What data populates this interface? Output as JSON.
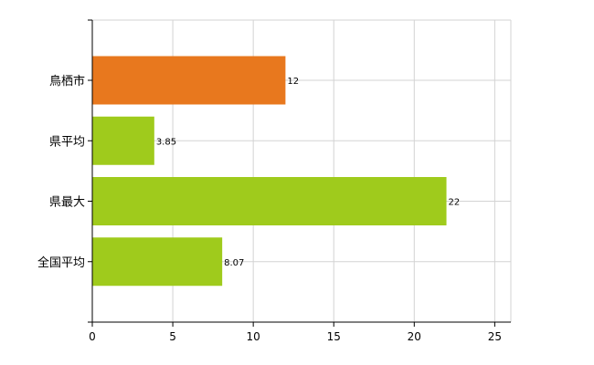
{
  "chart_data": {
    "type": "bar",
    "orientation": "horizontal",
    "categories": [
      "鳥栖市",
      "県平均",
      "県最大",
      "全国平均"
    ],
    "values": [
      12,
      3.85,
      22,
      8.07
    ],
    "value_labels": [
      "12",
      "3.85",
      "22",
      "8.07"
    ],
    "bar_colors": [
      "#e8781e",
      "#9fcb1c",
      "#9fcb1c",
      "#9fcb1c"
    ],
    "xlim": [
      0,
      26
    ],
    "xticks": [
      0,
      5,
      10,
      15,
      20,
      25
    ],
    "xtick_labels": [
      "0",
      "5",
      "10",
      "15",
      "20",
      "25"
    ],
    "grid": true,
    "title": "",
    "xlabel": "",
    "ylabel": ""
  }
}
